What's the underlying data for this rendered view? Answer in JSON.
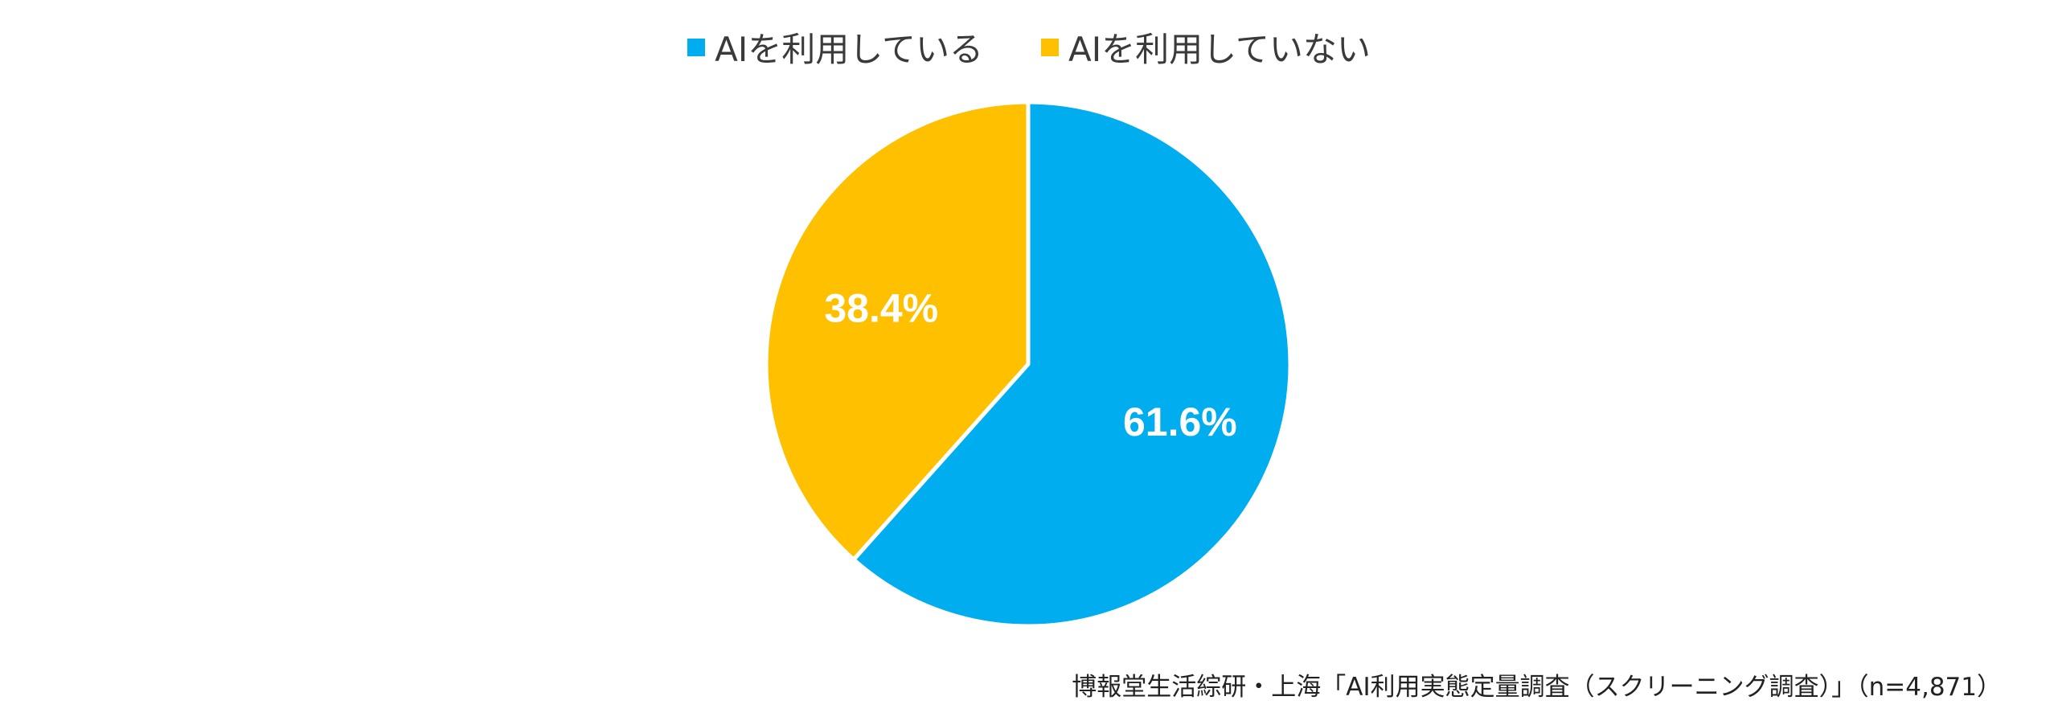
{
  "chart_data": {
    "type": "pie",
    "categories": [
      "AIを利用している",
      "AIを利用していない"
    ],
    "values": [
      61.6,
      38.4
    ],
    "data_labels": [
      "61.6%",
      "38.4%"
    ],
    "colors": [
      "#00ADEF",
      "#FFC000"
    ],
    "legend_position": "top-center",
    "start_angle": "12 o'clock",
    "direction": "clockwise"
  },
  "source_note": "博報堂生活綜研・上海「AI利用実態定量調査（スクリーニング調査）」（n=4,871）"
}
